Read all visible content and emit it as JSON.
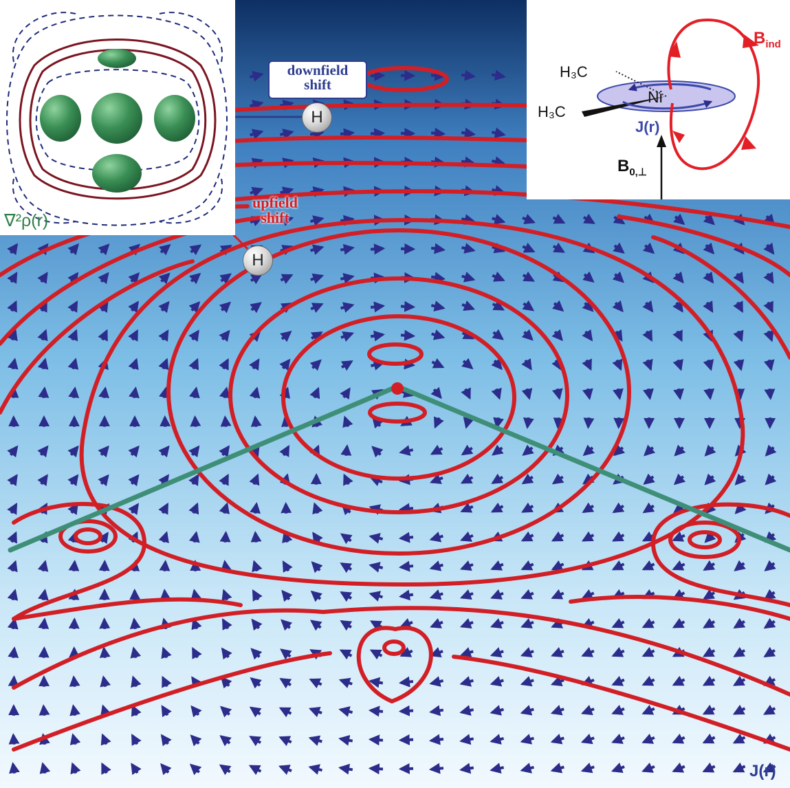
{
  "labels": {
    "downfield_line1": "downfield",
    "downfield_line2": "shift",
    "upfield_line1": "upfield",
    "upfield_line2": "shift",
    "hydrogen": "H",
    "laplacian": "∇²ρ(r)",
    "current_density": "J(r)"
  },
  "molecule": {
    "methyl_top": "H₃C",
    "methyl_bottom": "H₃C",
    "metal": "Ni",
    "current": "J(r)",
    "induced_field": "B",
    "induced_field_sub": "ind",
    "applied_field": "B",
    "applied_field_sub": "0,⊥"
  },
  "colors": {
    "background_top": "#0e2f63",
    "background_mid": "#5aa9df",
    "background_bottom": "#eaf6fd",
    "contour_red": "#d21f26",
    "arrow_blue": "#2c2c8a",
    "bond_green": "#3f8f78",
    "lobe_green": "#2f7f4a",
    "downfield_text": "#2e3d8f",
    "upfield_text": "#d21f26"
  },
  "icons": [
    "hydrogen-atom-icon",
    "nickel-atom-icon",
    "arrow-icon"
  ]
}
